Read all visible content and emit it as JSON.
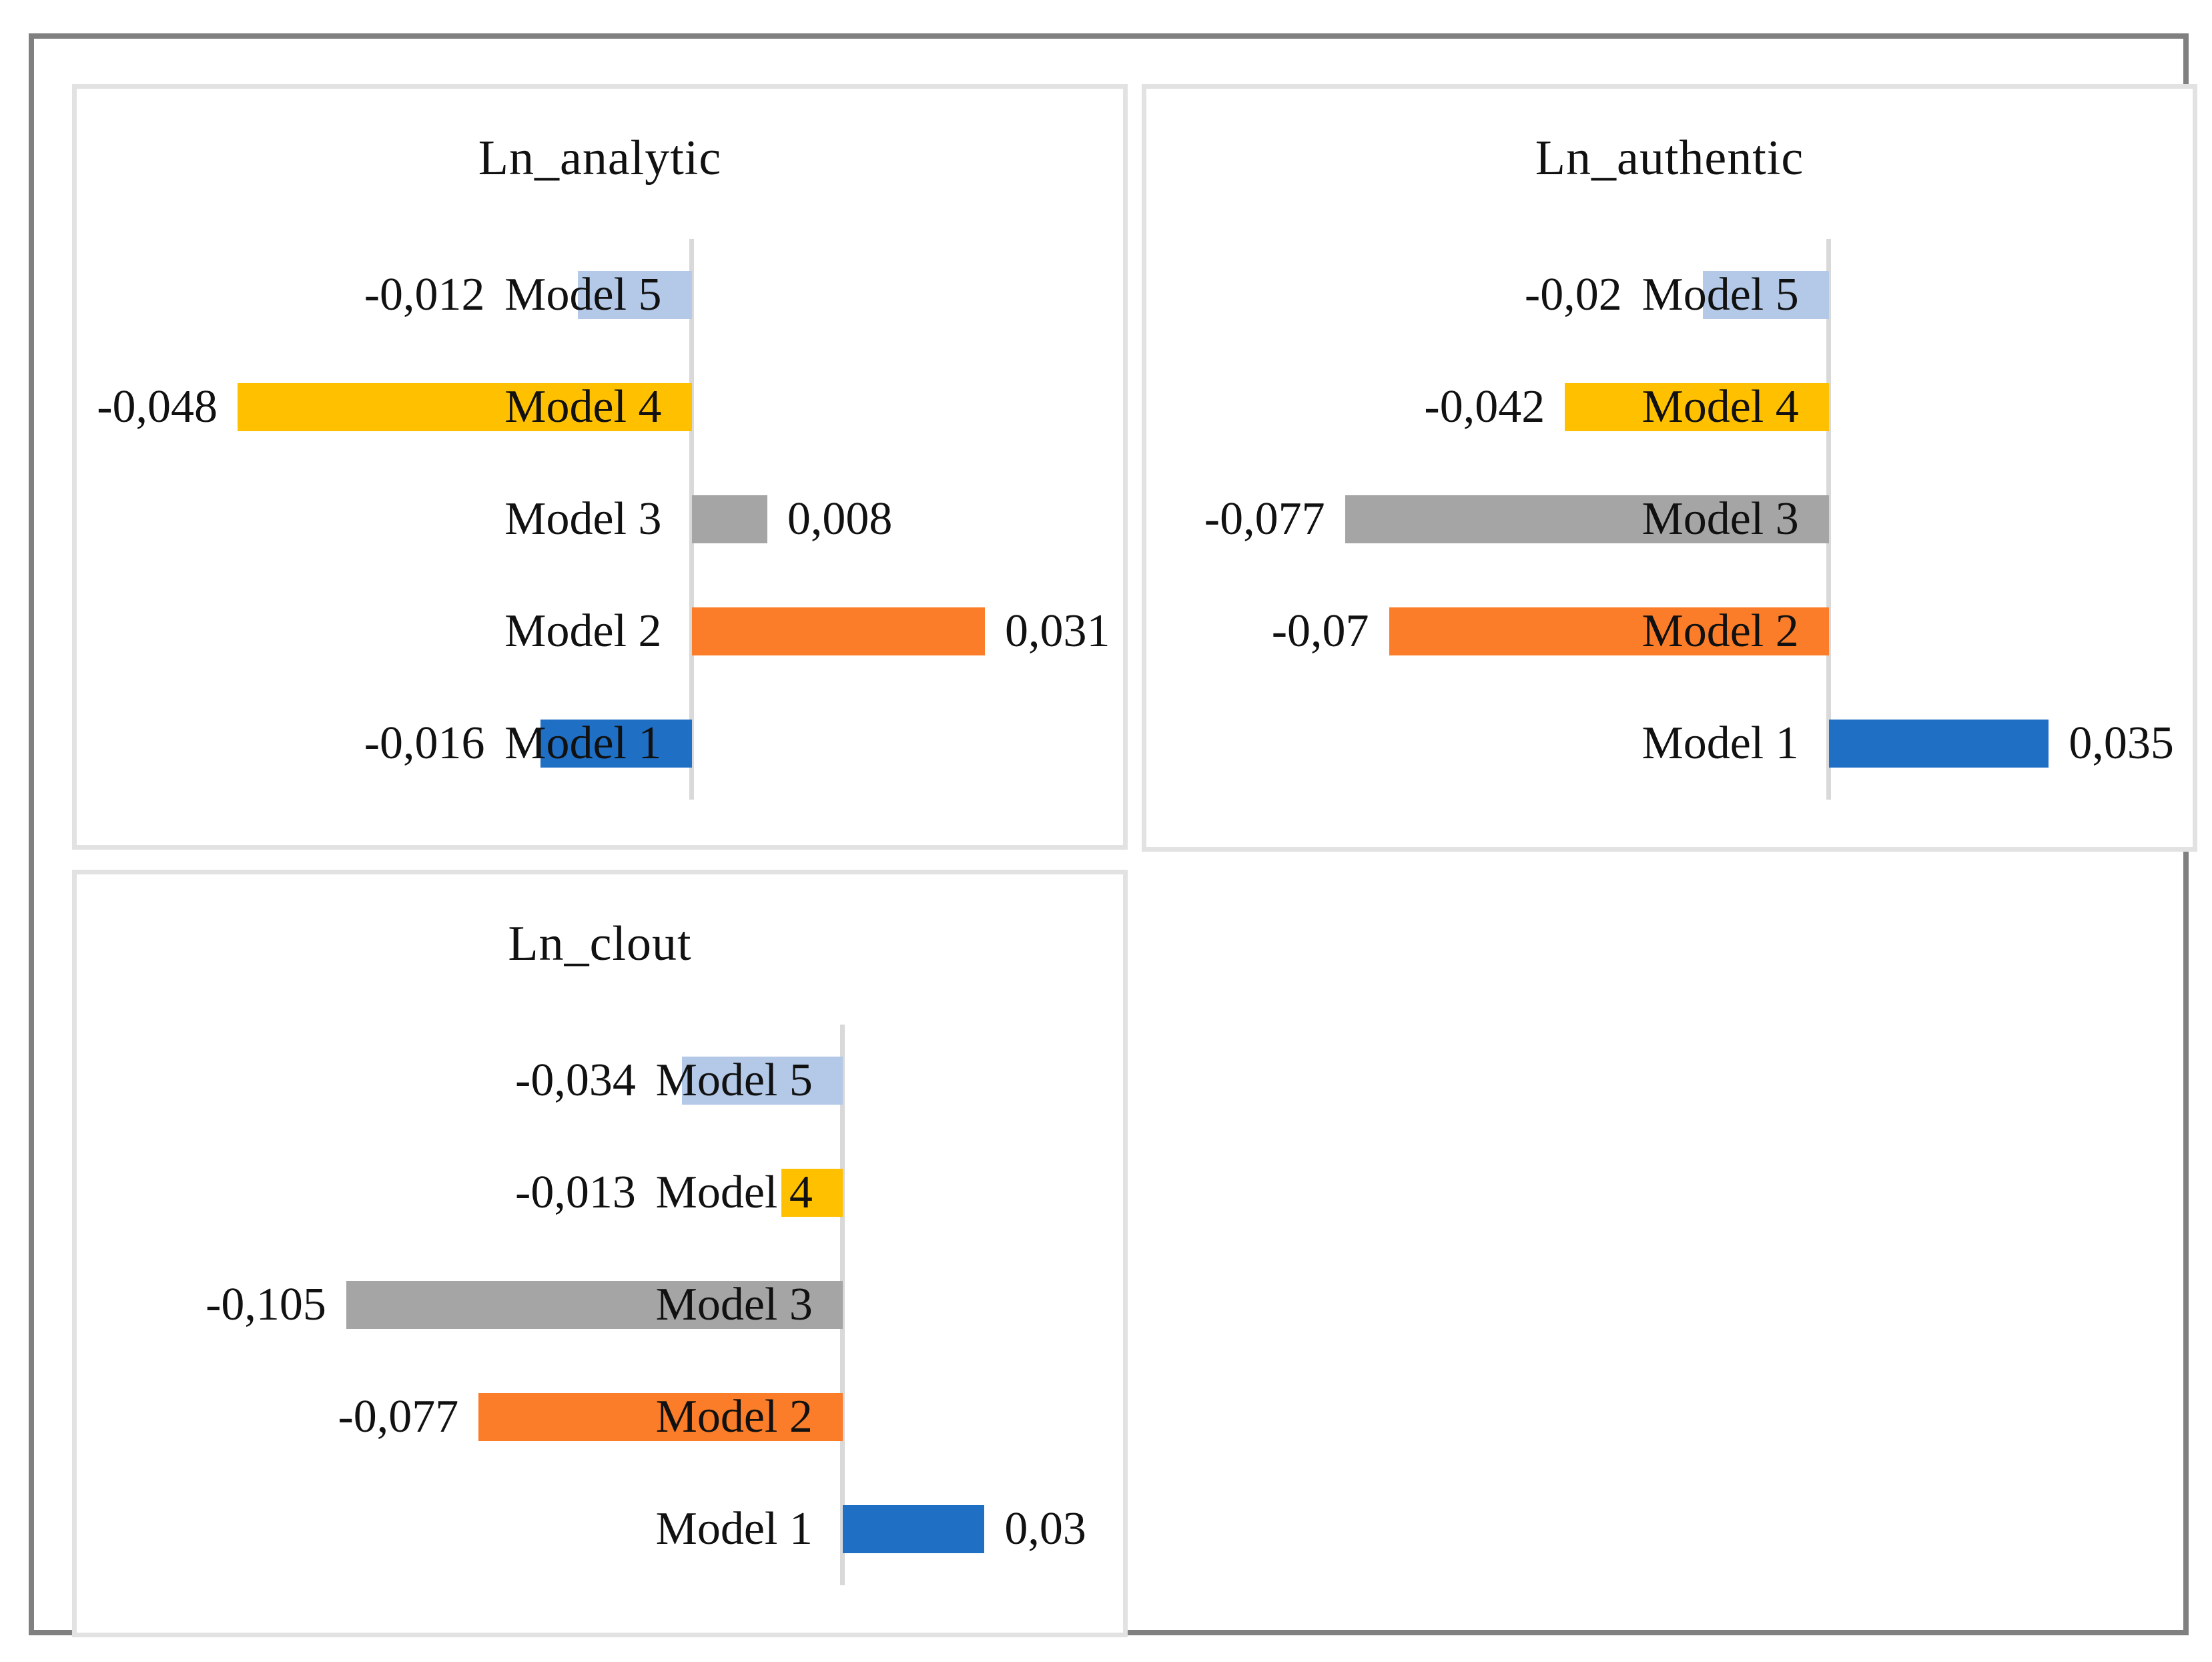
{
  "page": {
    "background": "#ffffff",
    "frame_color": "#808080",
    "panel_border_color": "#e2e2e2",
    "axis_color": "#d9d9d9",
    "text_color": "#111111"
  },
  "chart_data": [
    {
      "type": "bar",
      "orientation": "horizontal",
      "title": "Ln_analytic",
      "order": "top-to-bottom",
      "categories": [
        "Model 5",
        "Model 4",
        "Model 3",
        "Model 2",
        "Model 1"
      ],
      "values": [
        -0.012,
        -0.048,
        0.008,
        0.031,
        -0.016
      ],
      "value_labels": [
        "-0,012",
        "-0,048",
        "0,008",
        "0,031",
        "-0,016"
      ],
      "colors": [
        "#b4c9e8",
        "#ffc000",
        "#a5a5a5",
        "#fb7d29",
        "#1f6fc4"
      ],
      "xlim": [
        -0.065,
        0.0456
      ],
      "grid": false,
      "legend": false
    },
    {
      "type": "bar",
      "orientation": "horizontal",
      "title": "Ln_authentic",
      "order": "top-to-bottom",
      "categories": [
        "Model 5",
        "Model 4",
        "Model 3",
        "Model 2",
        "Model 1"
      ],
      "values": [
        -0.02,
        -0.042,
        -0.077,
        -0.07,
        0.035
      ],
      "value_labels": [
        "-0,02",
        "-0,042",
        "-0,077",
        "-0,07",
        "0,035"
      ],
      "colors": [
        "#b4c9e8",
        "#ffc000",
        "#a5a5a5",
        "#fb7d29",
        "#1f6fc4"
      ],
      "xlim": [
        -0.1086,
        0.0579
      ],
      "grid": false,
      "legend": false
    },
    {
      "type": "bar",
      "orientation": "horizontal",
      "title": "Ln_clout",
      "order": "top-to-bottom",
      "categories": [
        "Model 5",
        "Model 4",
        "Model 3",
        "Model 2",
        "Model 1"
      ],
      "values": [
        -0.034,
        -0.013,
        -0.105,
        -0.077,
        0.03
      ],
      "value_labels": [
        "-0,034",
        "-0,013",
        "-0,105",
        "-0,077",
        "0,03"
      ],
      "colors": [
        "#b4c9e8",
        "#ffc000",
        "#a5a5a5",
        "#fb7d29",
        "#1f6fc4"
      ],
      "xlim": [
        -0.162,
        0.0593
      ],
      "grid": false,
      "legend": false
    }
  ]
}
